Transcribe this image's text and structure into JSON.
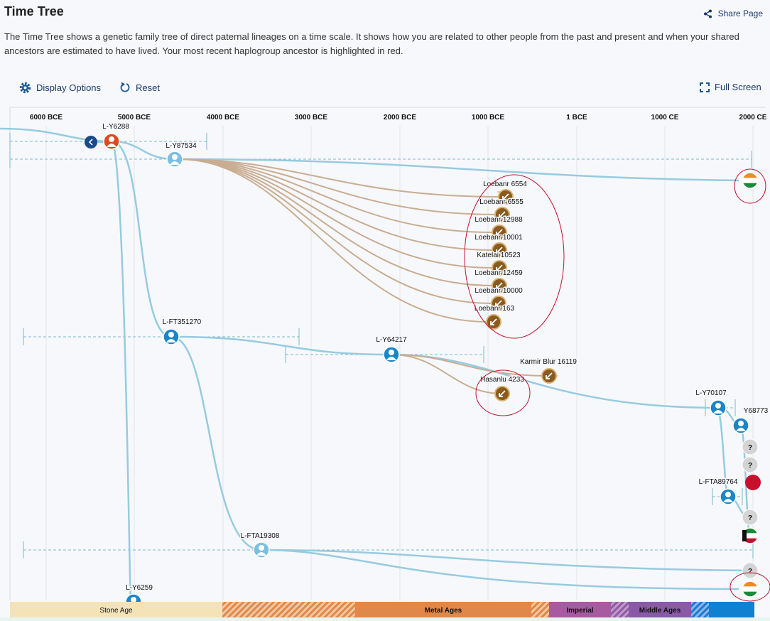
{
  "header": {
    "title": "Time Tree",
    "share": "Share Page"
  },
  "description": "The Time Tree shows a genetic family tree of direct paternal lineages on a time scale. It shows how you are related to other people from the past and present and when your shared ancestors are estimated to have lived. Your most recent haplogroup ancestor is highlighted in red.",
  "toolbar": {
    "display_options": "Display Options",
    "reset": "Reset",
    "full_screen": "Full Screen"
  },
  "timeline": {
    "axis_labels": [
      "6000 BCE",
      "5000 BCE",
      "4000 BCE",
      "3000 BCE",
      "2000 BCE",
      "1000 BCE",
      "1 BCE",
      "1000 CE",
      "2000 CE"
    ]
  },
  "tree": {
    "nodes": [
      "L-Y6288",
      "L-Y87534",
      "Loebanr 6554",
      "Loebanr 6555",
      "Loebanr 12988",
      "Loebanr 10001",
      "Katelai 10523",
      "Loebanr 12459",
      "Loebanr 10000",
      "Loebanr 163",
      "L-FT351270",
      "L-Y64217",
      "Karmir Blur 16119",
      "Hasanlu 4233",
      "L-Y70107",
      "Y68773",
      "L-FTA89764",
      "L-FTA19308",
      "L-Y6259"
    ],
    "unknown_markers": [
      "?",
      "?",
      "?",
      "?"
    ]
  },
  "age_bar": [
    "Stone Age",
    "Metal Ages",
    "Imperial",
    "Middle Ages"
  ]
}
